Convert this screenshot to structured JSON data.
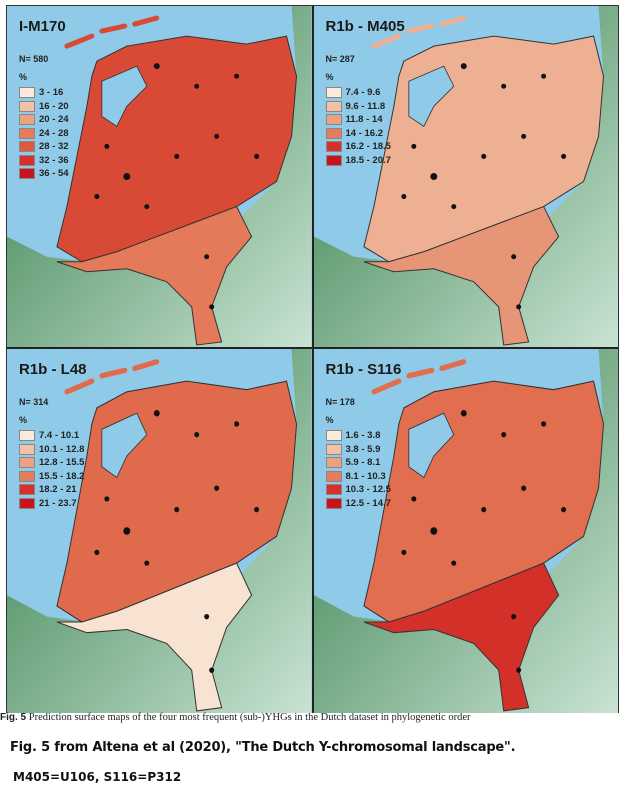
{
  "panels": [
    {
      "title": "I-M170",
      "n": "N= 580",
      "pct": "%",
      "legend": [
        "3 - 16",
        "16 - 20",
        "20 - 24",
        "24 - 28",
        "28 - 32",
        "32 - 36",
        "36 - 54"
      ],
      "colors": [
        "#fbe9dc",
        "#f2c1a6",
        "#eda27f",
        "#e57c5e",
        "#dd5a40",
        "#d6302a",
        "#c9141f"
      ],
      "fill_main": "#d94a36",
      "fill_south": "#e47a5a"
    },
    {
      "title": "R1b - M405",
      "n": "N= 287",
      "pct": "%",
      "legend": [
        "7.4 - 9.6",
        "9.6 - 11.8",
        "11.8 - 14",
        "14 - 16.2",
        "16.2 - 18.5",
        "18.5 - 20.7"
      ],
      "colors": [
        "#fbe9dc",
        "#f2c1a6",
        "#eda27f",
        "#e57c5e",
        "#d6302a",
        "#c9141f"
      ],
      "fill_main": "#eeb092",
      "fill_south": "#e79577"
    },
    {
      "title": "R1b - L48",
      "n": "N= 314",
      "pct": "%",
      "legend": [
        "7.4 - 10.1",
        "10.1 - 12.8",
        "12.8 - 15.5",
        "15.5 - 18.2",
        "18.2 - 21",
        "21 - 23.7"
      ],
      "colors": [
        "#fbe9dc",
        "#f2c1a6",
        "#eda27f",
        "#e57c5e",
        "#d6302a",
        "#c9141f"
      ],
      "fill_main": "#e06a4c",
      "fill_south": "#f8e2d2"
    },
    {
      "title": "R1b - S116",
      "n": "N= 178",
      "pct": "%",
      "legend": [
        "1.6 - 3.8",
        "3.8 - 5.9",
        "5.9 - 8.1",
        "8.1 - 10.3",
        "10.3 - 12.5",
        "12.5 - 14.7"
      ],
      "colors": [
        "#fbe9dc",
        "#f2c1a6",
        "#eda27f",
        "#e57c5e",
        "#d6302a",
        "#c9141f"
      ],
      "fill_main": "#e26e50",
      "fill_south": "#d3302a"
    }
  ],
  "caption": {
    "label": "Fig. 5",
    "text": " Prediction surface maps of the four most frequent (sub-)YHGs in the Dutch dataset in phylogenetic order"
  },
  "notes": {
    "source": "Fig. 5 from Altena et al (2020), \"The Dutch Y-chromosomal landscape\".",
    "aliases": "M405=U106, S116=P312"
  },
  "map_colors": {
    "sea": "#8fcbe8",
    "land_dark_green": "#2e7a45",
    "land_light_green": "#c9e3d2",
    "border": "#333333",
    "sample_dot": "#111111"
  }
}
